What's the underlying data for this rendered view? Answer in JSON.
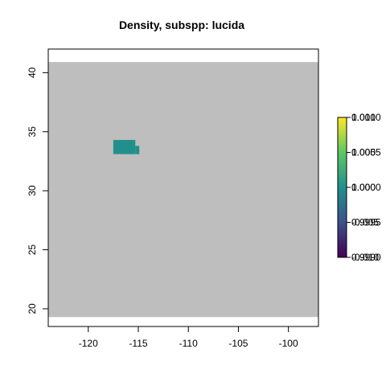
{
  "chart_data": {
    "type": "heatmap",
    "title": "Density, subspp: lucida",
    "xlabel": "",
    "ylabel": "",
    "xlim": [
      -124,
      -97
    ],
    "ylim": [
      18.5,
      42
    ],
    "x_ticks": [
      -120,
      -115,
      -110,
      -105,
      -100
    ],
    "y_ticks": [
      20,
      25,
      30,
      35,
      40
    ],
    "x_tick_labels": [
      "-120",
      "-115",
      "-110",
      "-105",
      "-100"
    ],
    "y_tick_labels": [
      "20",
      "25",
      "30",
      "35",
      "40"
    ],
    "background_region": {
      "x_range": [
        -124,
        -97
      ],
      "y_range": [
        19.3,
        40.9
      ],
      "fill": "#bebebe",
      "meaning": "no data"
    },
    "cells": [
      {
        "x_range": [
          -117.5,
          -115.3
        ],
        "y_range": [
          33.1,
          34.3
        ],
        "value": 0.0
      },
      {
        "x_range": [
          -115.3,
          -114.9
        ],
        "y_range": [
          33.1,
          33.8
        ],
        "value": 0.0
      }
    ],
    "colorbar": {
      "colormap": "viridis",
      "colors": [
        "#440154",
        "#3b528b",
        "#21908c",
        "#5dc863",
        "#fde725"
      ],
      "range": [
        -0.01,
        0.01
      ],
      "ticks": [
        {
          "value": -0.01,
          "label": "0.9990"
        },
        {
          "value": -0.005,
          "label": "0.9995"
        },
        {
          "value": 0.0,
          "label": "1.0000"
        },
        {
          "value": 0.005,
          "label": "1.0005"
        },
        {
          "value": 0.01,
          "label": "1.0010"
        }
      ],
      "overlay_ticks": [
        {
          "value": -0.01,
          "label": "-0.010"
        },
        {
          "value": -0.005,
          "label": "-0.005"
        },
        {
          "value": 0.0,
          "label": "0.000"
        },
        {
          "value": 0.005,
          "label": "0.005"
        },
        {
          "value": 0.01,
          "label": "0.010"
        }
      ]
    },
    "grid": false,
    "legend_placement": "right"
  }
}
